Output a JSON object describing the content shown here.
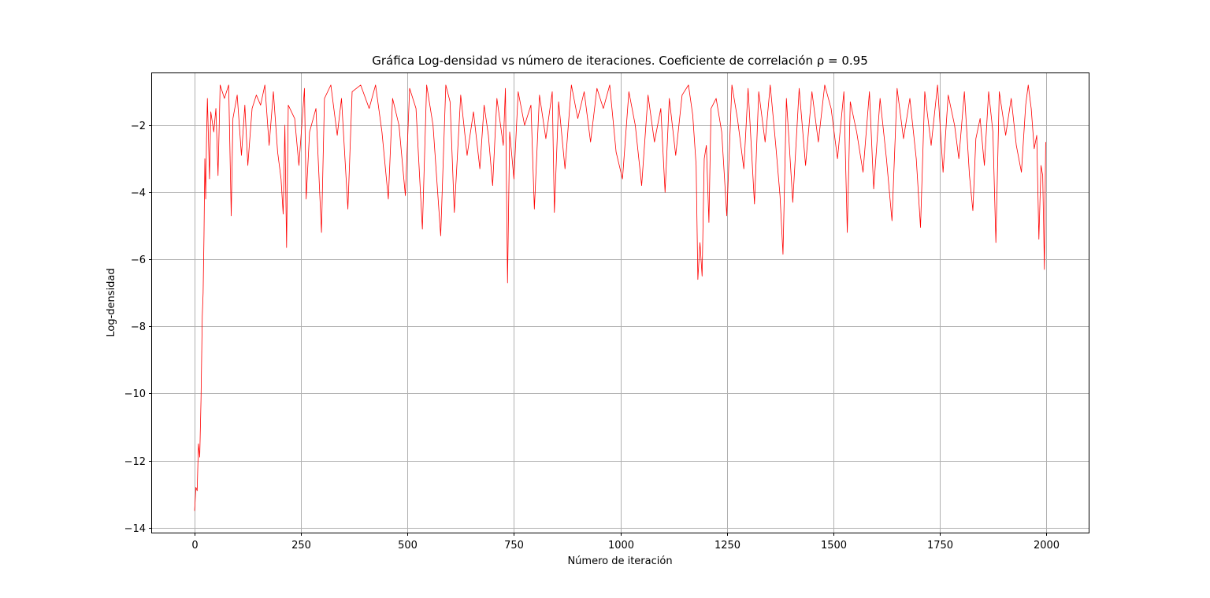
{
  "chart_data": {
    "type": "line",
    "title": "Gráfica Log-densidad vs número de iteraciones.    Coeficiente de correlación ρ = 0.95",
    "xlabel": "Número de iteración",
    "ylabel": "Log-densidad",
    "xlim": [
      -100,
      2100
    ],
    "ylim": [
      -14.15,
      -0.45
    ],
    "xticks": [
      0,
      250,
      500,
      750,
      1000,
      1250,
      1500,
      1750,
      2000
    ],
    "xtick_labels": [
      "0",
      "250",
      "500",
      "750",
      "1000",
      "1250",
      "1500",
      "1750",
      "2000"
    ],
    "yticks": [
      -14,
      -12,
      -10,
      -8,
      -6,
      -4,
      -2
    ],
    "ytick_labels": [
      "−14",
      "−12",
      "−10",
      "−8",
      "−6",
      "−4",
      "−2"
    ],
    "grid": true,
    "series": [
      {
        "color": "#ff0000",
        "points": [
          [
            0,
            -13.5
          ],
          [
            3,
            -12.8
          ],
          [
            6,
            -12.9
          ],
          [
            9,
            -11.5
          ],
          [
            12,
            -11.9
          ],
          [
            15,
            -10.2
          ],
          [
            18,
            -7.7
          ],
          [
            20,
            -7.0
          ],
          [
            22,
            -5.3
          ],
          [
            24,
            -3.0
          ],
          [
            26,
            -4.2
          ],
          [
            28,
            -2.4
          ],
          [
            30,
            -1.2
          ],
          [
            35,
            -3.6
          ],
          [
            38,
            -1.6
          ],
          [
            45,
            -2.2
          ],
          [
            50,
            -1.5
          ],
          [
            55,
            -3.5
          ],
          [
            60,
            -0.8
          ],
          [
            70,
            -1.2
          ],
          [
            80,
            -0.8
          ],
          [
            86,
            -4.7
          ],
          [
            90,
            -1.8
          ],
          [
            100,
            -1.1
          ],
          [
            110,
            -2.9
          ],
          [
            118,
            -1.4
          ],
          [
            125,
            -3.2
          ],
          [
            135,
            -1.5
          ],
          [
            145,
            -1.1
          ],
          [
            155,
            -1.4
          ],
          [
            165,
            -0.8
          ],
          [
            175,
            -2.6
          ],
          [
            185,
            -1.0
          ],
          [
            195,
            -2.8
          ],
          [
            203,
            -3.6
          ],
          [
            208,
            -4.65
          ],
          [
            212,
            -2.0
          ],
          [
            216,
            -5.65
          ],
          [
            220,
            -1.4
          ],
          [
            235,
            -1.8
          ],
          [
            245,
            -3.2
          ],
          [
            258,
            -0.9
          ],
          [
            262,
            -4.2
          ],
          [
            270,
            -2.2
          ],
          [
            285,
            -1.5
          ],
          [
            298,
            -5.2
          ],
          [
            305,
            -1.2
          ],
          [
            320,
            -0.8
          ],
          [
            335,
            -2.3
          ],
          [
            345,
            -1.2
          ],
          [
            360,
            -4.5
          ],
          [
            370,
            -1.0
          ],
          [
            390,
            -0.8
          ],
          [
            410,
            -1.5
          ],
          [
            425,
            -0.8
          ],
          [
            440,
            -2.2
          ],
          [
            455,
            -4.2
          ],
          [
            465,
            -1.2
          ],
          [
            480,
            -2.0
          ],
          [
            495,
            -4.1
          ],
          [
            505,
            -0.9
          ],
          [
            520,
            -1.5
          ],
          [
            535,
            -5.1
          ],
          [
            545,
            -0.8
          ],
          [
            560,
            -2.0
          ],
          [
            578,
            -5.3
          ],
          [
            590,
            -0.8
          ],
          [
            600,
            -1.3
          ],
          [
            610,
            -4.6
          ],
          [
            625,
            -1.1
          ],
          [
            640,
            -2.9
          ],
          [
            655,
            -1.6
          ],
          [
            670,
            -3.3
          ],
          [
            680,
            -1.4
          ],
          [
            690,
            -2.3
          ],
          [
            700,
            -3.8
          ],
          [
            710,
            -1.2
          ],
          [
            725,
            -2.6
          ],
          [
            730,
            -0.9
          ],
          [
            735,
            -6.7
          ],
          [
            740,
            -2.2
          ],
          [
            750,
            -3.6
          ],
          [
            760,
            -1.0
          ],
          [
            775,
            -2.0
          ],
          [
            790,
            -1.4
          ],
          [
            798,
            -4.5
          ],
          [
            810,
            -1.1
          ],
          [
            825,
            -2.4
          ],
          [
            840,
            -1.0
          ],
          [
            845,
            -4.6
          ],
          [
            855,
            -1.3
          ],
          [
            870,
            -3.3
          ],
          [
            885,
            -0.8
          ],
          [
            900,
            -1.8
          ],
          [
            915,
            -1.0
          ],
          [
            930,
            -2.5
          ],
          [
            945,
            -0.9
          ],
          [
            960,
            -1.5
          ],
          [
            975,
            -0.8
          ],
          [
            990,
            -2.8
          ],
          [
            1005,
            -3.6
          ],
          [
            1020,
            -1.0
          ],
          [
            1035,
            -2.0
          ],
          [
            1050,
            -3.8
          ],
          [
            1065,
            -1.1
          ],
          [
            1080,
            -2.5
          ],
          [
            1095,
            -1.5
          ],
          [
            1105,
            -4.0
          ],
          [
            1115,
            -1.2
          ],
          [
            1130,
            -2.9
          ],
          [
            1145,
            -1.1
          ],
          [
            1160,
            -0.8
          ],
          [
            1170,
            -1.7
          ],
          [
            1178,
            -3.2
          ],
          [
            1182,
            -6.6
          ],
          [
            1187,
            -5.5
          ],
          [
            1192,
            -6.5
          ],
          [
            1197,
            -3.0
          ],
          [
            1202,
            -2.6
          ],
          [
            1208,
            -4.9
          ],
          [
            1213,
            -1.5
          ],
          [
            1225,
            -1.2
          ],
          [
            1238,
            -2.2
          ],
          [
            1250,
            -4.7
          ],
          [
            1262,
            -0.8
          ],
          [
            1275,
            -1.8
          ],
          [
            1290,
            -3.3
          ],
          [
            1300,
            -0.9
          ],
          [
            1315,
            -4.35
          ],
          [
            1325,
            -1.0
          ],
          [
            1340,
            -2.5
          ],
          [
            1352,
            -0.8
          ],
          [
            1365,
            -2.6
          ],
          [
            1375,
            -4.1
          ],
          [
            1382,
            -5.85
          ],
          [
            1390,
            -1.2
          ],
          [
            1405,
            -4.3
          ],
          [
            1420,
            -0.9
          ],
          [
            1435,
            -3.2
          ],
          [
            1450,
            -1.0
          ],
          [
            1465,
            -2.5
          ],
          [
            1480,
            -0.8
          ],
          [
            1495,
            -1.5
          ],
          [
            1510,
            -3.0
          ],
          [
            1525,
            -1.0
          ],
          [
            1533,
            -5.2
          ],
          [
            1540,
            -1.3
          ],
          [
            1555,
            -2.2
          ],
          [
            1570,
            -3.4
          ],
          [
            1585,
            -1.0
          ],
          [
            1595,
            -3.9
          ],
          [
            1610,
            -1.2
          ],
          [
            1625,
            -3.0
          ],
          [
            1638,
            -4.85
          ],
          [
            1650,
            -0.9
          ],
          [
            1665,
            -2.4
          ],
          [
            1680,
            -1.2
          ],
          [
            1695,
            -3.0
          ],
          [
            1705,
            -5.05
          ],
          [
            1715,
            -1.0
          ],
          [
            1730,
            -2.6
          ],
          [
            1745,
            -0.8
          ],
          [
            1758,
            -3.4
          ],
          [
            1770,
            -1.1
          ],
          [
            1785,
            -2.0
          ],
          [
            1795,
            -3.0
          ],
          [
            1808,
            -1.0
          ],
          [
            1820,
            -3.5
          ],
          [
            1828,
            -4.55
          ],
          [
            1835,
            -2.4
          ],
          [
            1845,
            -1.8
          ],
          [
            1855,
            -3.2
          ],
          [
            1865,
            -1.0
          ],
          [
            1875,
            -2.2
          ],
          [
            1882,
            -5.5
          ],
          [
            1890,
            -1.0
          ],
          [
            1905,
            -2.3
          ],
          [
            1918,
            -1.2
          ],
          [
            1930,
            -2.6
          ],
          [
            1942,
            -3.4
          ],
          [
            1952,
            -1.4
          ],
          [
            1958,
            -0.8
          ],
          [
            1965,
            -1.5
          ],
          [
            1972,
            -2.7
          ],
          [
            1978,
            -2.3
          ],
          [
            1983,
            -5.4
          ],
          [
            1988,
            -3.2
          ],
          [
            1992,
            -3.5
          ],
          [
            1996,
            -6.3
          ],
          [
            1999,
            -2.5
          ]
        ]
      }
    ]
  }
}
